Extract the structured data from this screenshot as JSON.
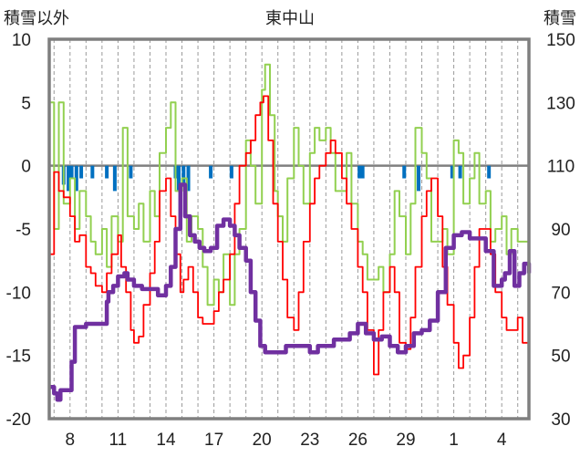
{
  "chart_data": {
    "type": "line",
    "title": "東中山",
    "left_axis_label": "積雪以外",
    "right_axis_label": "積雪",
    "left_ylim": [
      -20,
      10
    ],
    "left_yticks": [
      -20,
      -15,
      -10,
      -5,
      0,
      5,
      10
    ],
    "right_ylim": [
      30,
      150
    ],
    "right_yticks": [
      30,
      50,
      70,
      90,
      110,
      130,
      150
    ],
    "x_tick_labels": [
      "8",
      "11",
      "14",
      "17",
      "20",
      "23",
      "26",
      "29",
      "1",
      "4"
    ],
    "x_tick_days": [
      8,
      11,
      14,
      17,
      20,
      23,
      26,
      29,
      32,
      35
    ],
    "xlim": [
      6.7,
      36.7
    ],
    "grid": "vertical dashed, daily",
    "colors": {
      "temperature": "#ff0000",
      "wind": "#92d050",
      "precipitation": "#0070c0",
      "snow_depth": "#7030a0",
      "frame": "#7f7f7f"
    },
    "series": [
      {
        "key": "temperature",
        "axis": "left",
        "x": [
          6.7,
          7.0,
          7.3,
          7.6,
          8.0,
          8.3,
          8.6,
          9.0,
          9.3,
          9.6,
          10.0,
          10.3,
          10.6,
          11.0,
          11.2,
          11.5,
          11.8,
          12.0,
          12.3,
          12.6,
          13.0,
          13.3,
          13.6,
          14.0,
          14.3,
          14.6,
          14.9,
          15.1,
          15.4,
          15.7,
          16.0,
          16.3,
          16.7,
          17.0,
          17.3,
          17.6,
          18.0,
          18.3,
          18.6,
          19.0,
          19.3,
          19.6,
          19.9,
          20.1,
          20.4,
          20.7,
          21.0,
          21.3,
          21.6,
          22.0,
          22.3,
          22.6,
          23.0,
          23.3,
          23.6,
          24.0,
          24.3,
          24.6,
          25.0,
          25.3,
          25.6,
          26.0,
          26.3,
          26.6,
          27.0,
          27.3,
          27.6,
          28.0,
          28.3,
          28.6,
          29.0,
          29.3,
          29.6,
          30.0,
          30.3,
          30.6,
          31.0,
          31.3,
          31.6,
          32.0,
          32.3,
          32.6,
          33.0,
          33.3,
          33.6,
          34.0,
          34.3,
          34.6,
          35.0,
          35.3,
          35.6,
          36.0,
          36.3,
          36.7
        ],
        "values": [
          -7,
          -0.5,
          -2,
          -2.5,
          -4,
          -6,
          -5.5,
          -8,
          -8.5,
          -9.5,
          -10,
          -8.5,
          -7,
          -5.5,
          -8,
          -10,
          -13,
          -14,
          -13.5,
          -11,
          -8.5,
          -6,
          -2,
          -1,
          -4,
          -7,
          -10,
          -9,
          -8,
          -10,
          -12,
          -12.5,
          -12.5,
          -11.5,
          -10,
          -9,
          -7,
          -3,
          0,
          1,
          2,
          4,
          5,
          5.5,
          2,
          -3,
          -6,
          -9,
          -12,
          -13,
          -10,
          -6,
          -3,
          -1,
          0,
          1,
          2,
          1,
          -1,
          -3,
          -5,
          -8,
          -10,
          -13,
          -16.5,
          -13,
          -10,
          -8,
          -10,
          -14,
          -14.5,
          -12,
          -8,
          -4,
          -2,
          -1,
          -4,
          -8,
          -11,
          -14,
          -16,
          -15,
          -12,
          -8,
          -5,
          -5,
          -7,
          -10,
          -12,
          -13,
          -13,
          -12,
          -14,
          -14.5
        ]
      },
      {
        "key": "wind",
        "axis": "left",
        "x": [
          6.7,
          7.0,
          7.3,
          7.6,
          8.0,
          8.3,
          8.6,
          9.0,
          9.3,
          9.6,
          10.0,
          10.3,
          10.6,
          11.0,
          11.3,
          11.6,
          12.0,
          12.3,
          12.6,
          13.0,
          13.3,
          13.6,
          14.0,
          14.3,
          14.6,
          15.0,
          15.3,
          15.6,
          16.0,
          16.3,
          16.6,
          17.0,
          17.3,
          17.6,
          18.0,
          18.3,
          18.6,
          19.0,
          19.3,
          19.6,
          20.0,
          20.2,
          20.5,
          20.8,
          21.0,
          21.3,
          21.6,
          22.0,
          22.3,
          22.6,
          23.0,
          23.3,
          23.6,
          24.0,
          24.3,
          24.6,
          25.0,
          25.3,
          25.6,
          26.0,
          26.3,
          26.6,
          27.0,
          27.3,
          27.6,
          28.0,
          28.3,
          28.6,
          29.0,
          29.3,
          29.6,
          30.0,
          30.3,
          30.6,
          31.0,
          31.3,
          31.6,
          32.0,
          32.3,
          32.6,
          33.0,
          33.3,
          33.6,
          34.0,
          34.3,
          34.6,
          35.0,
          35.3,
          35.6,
          36.0,
          36.3,
          36.7
        ],
        "values": [
          5,
          -5,
          5,
          -3,
          -1,
          -5,
          -2,
          -4,
          -6,
          -7,
          -5,
          -8,
          -4,
          -6,
          3,
          -4,
          -5,
          -3,
          -6,
          -2,
          -4,
          1,
          3,
          5,
          -2,
          -1,
          -6,
          -4,
          -5,
          -8,
          -11,
          -9,
          -10,
          -7,
          -11,
          -7,
          -5,
          2,
          0,
          -3,
          6,
          8,
          4,
          -2,
          -4,
          -6,
          -1,
          3,
          0,
          -3,
          1,
          3,
          2,
          3,
          1,
          -2,
          -2,
          1,
          -3,
          -6,
          -7,
          -9,
          -9,
          -8,
          -10,
          -7,
          -2,
          -4,
          -7,
          -3,
          3,
          1,
          -1,
          -6,
          -6,
          -5,
          -7,
          2,
          1,
          -3,
          -1,
          1,
          -3,
          -2,
          -6,
          -5,
          -4,
          -7,
          -5,
          -6,
          -6,
          -4
        ]
      },
      {
        "key": "precipitation",
        "axis": "left",
        "x": [
          7.6,
          7.9,
          8.1,
          8.4,
          8.7,
          9.4,
          10.3,
          10.8,
          11.8,
          14.6,
          14.8,
          15.1,
          15.4,
          16.8,
          18.1,
          26.1,
          26.3,
          28.9,
          29.8,
          31.9,
          32.4,
          34.2
        ],
        "values": [
          -1.5,
          -2,
          -1,
          -2,
          -1,
          -1,
          -1,
          -2,
          -1,
          -1,
          -2,
          -1.5,
          -2,
          -1,
          -1,
          -1,
          -1,
          -1,
          -2,
          -1,
          -1,
          -1
        ]
      },
      {
        "key": "snow_depth",
        "axis": "right",
        "x": [
          6.7,
          7.0,
          7.2,
          7.4,
          7.6,
          8.0,
          8.1,
          8.3,
          8.6,
          9.0,
          9.5,
          10.0,
          10.3,
          10.4,
          10.7,
          11.0,
          11.4,
          11.6,
          12.0,
          12.5,
          13.0,
          13.5,
          14.0,
          14.3,
          14.6,
          14.9,
          15.2,
          15.5,
          15.8,
          16.1,
          16.4,
          16.8,
          17.2,
          17.6,
          18.0,
          18.3,
          18.6,
          19.0,
          19.3,
          19.6,
          19.9,
          20.2,
          20.5,
          21.0,
          21.5,
          22.0,
          22.5,
          23.0,
          23.5,
          24.0,
          24.5,
          25.0,
          25.5,
          26.0,
          26.5,
          27.0,
          27.5,
          28.0,
          28.5,
          29.0,
          29.5,
          30.0,
          30.5,
          31.0,
          31.5,
          32.0,
          32.5,
          33.0,
          33.5,
          34.0,
          34.5,
          35.0,
          35.2,
          35.5,
          35.8,
          36.1,
          36.4,
          36.7
        ],
        "values": [
          40,
          38,
          36,
          39,
          39,
          39,
          48,
          59,
          59,
          60,
          60,
          60,
          67,
          70,
          72,
          75,
          76,
          74,
          72,
          71,
          71,
          69,
          72,
          78,
          90,
          104,
          94,
          88,
          86,
          84,
          83,
          84,
          91,
          93,
          91,
          88,
          84,
          80,
          70,
          61,
          53,
          51,
          51,
          51,
          53,
          53,
          53,
          51,
          53,
          53,
          55,
          55,
          57,
          60,
          57,
          55,
          56,
          53,
          51,
          53,
          57,
          58,
          61,
          70,
          84,
          88,
          89,
          87,
          87,
          83,
          72,
          74,
          76,
          83,
          72,
          76,
          79,
          76
        ]
      }
    ]
  }
}
